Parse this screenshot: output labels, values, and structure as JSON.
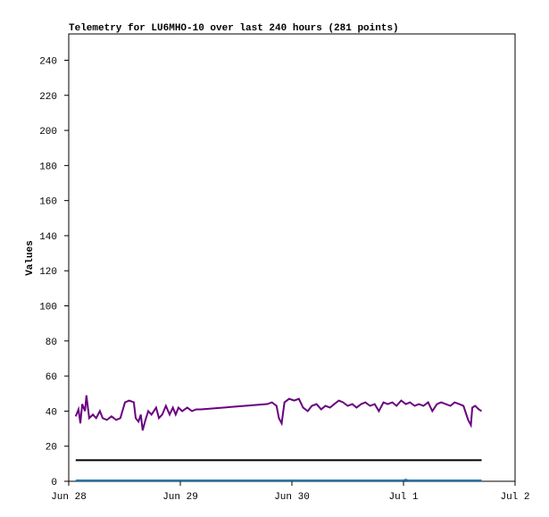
{
  "chart_data": {
    "type": "line",
    "title": "Telemetry for LU6MHO-10 over last 240 hours (281 points)",
    "y_label": "Values",
    "xlim": [
      0,
      96
    ],
    "xticks": [
      {
        "value": 0,
        "label": "Jun 28"
      },
      {
        "value": 24,
        "label": "Jun 29"
      },
      {
        "value": 48,
        "label": "Jun 30"
      },
      {
        "value": 72,
        "label": "Jul 1"
      },
      {
        "value": 96,
        "label": "Jul 2"
      }
    ],
    "ylim": [
      0,
      255
    ],
    "yticks": [
      0,
      20,
      40,
      60,
      80,
      100,
      120,
      140,
      160,
      180,
      200,
      220,
      240
    ],
    "grid": false,
    "series": [
      {
        "color": "#6a0080",
        "x": [
          1.5,
          2.1,
          2.5,
          2.9,
          3.5,
          3.8,
          4.4,
          5.2,
          5.9,
          6.7,
          7.3,
          8.2,
          9.2,
          10.2,
          11.1,
          12.1,
          13.0,
          14.0,
          14.4,
          15.0,
          15.5,
          15.9,
          16.5,
          17.1,
          17.8,
          18.8,
          19.4,
          20.1,
          20.9,
          21.7,
          22.4,
          23.0,
          23.6,
          24.4,
          25.5,
          26.5,
          27.4,
          28.4,
          42.7,
          43.7,
          44.7,
          45.2,
          45.8,
          46.4,
          47.4,
          48.5,
          49.5,
          50.4,
          51.4,
          52.3,
          53.3,
          54.3,
          55.2,
          56.2,
          57.1,
          58.1,
          59.0,
          60.0,
          61.0,
          61.9,
          62.9,
          63.8,
          64.8,
          65.8,
          66.7,
          67.7,
          68.6,
          69.6,
          70.5,
          71.5,
          72.5,
          73.4,
          74.4,
          75.3,
          76.3,
          77.3,
          78.2,
          79.2,
          80.1,
          81.1,
          82.1,
          83.0,
          84.0,
          84.9,
          85.9,
          86.5,
          86.8,
          87.4,
          88.2,
          88.8
        ],
        "values": [
          37,
          41,
          33,
          44,
          40,
          49,
          36,
          38,
          36,
          40,
          36,
          35,
          37,
          35,
          36,
          45,
          46,
          45,
          36,
          34,
          38,
          29,
          35,
          40,
          38,
          42,
          36,
          38,
          43,
          38,
          42,
          38,
          42,
          40,
          42,
          40,
          41,
          41,
          44,
          45,
          43,
          36,
          33,
          45,
          47,
          46,
          47,
          42,
          40,
          43,
          44,
          41,
          43,
          42,
          44,
          46,
          45,
          43,
          44,
          42,
          44,
          45,
          43,
          44,
          40,
          45,
          44,
          45,
          43,
          46,
          44,
          45,
          43,
          44,
          43,
          45,
          40,
          44,
          45,
          44,
          43,
          45,
          44,
          43,
          35,
          32,
          42,
          43,
          41,
          40
        ]
      },
      {
        "color": "#000000",
        "x": [
          1.5,
          88.8
        ],
        "values": [
          12,
          12
        ]
      },
      {
        "color": "#1f77b4",
        "x": [
          1.5,
          72.0,
          72.5,
          73.0,
          88.8
        ],
        "values": [
          0.5,
          0.5,
          1,
          0.5,
          0.5
        ]
      }
    ]
  }
}
